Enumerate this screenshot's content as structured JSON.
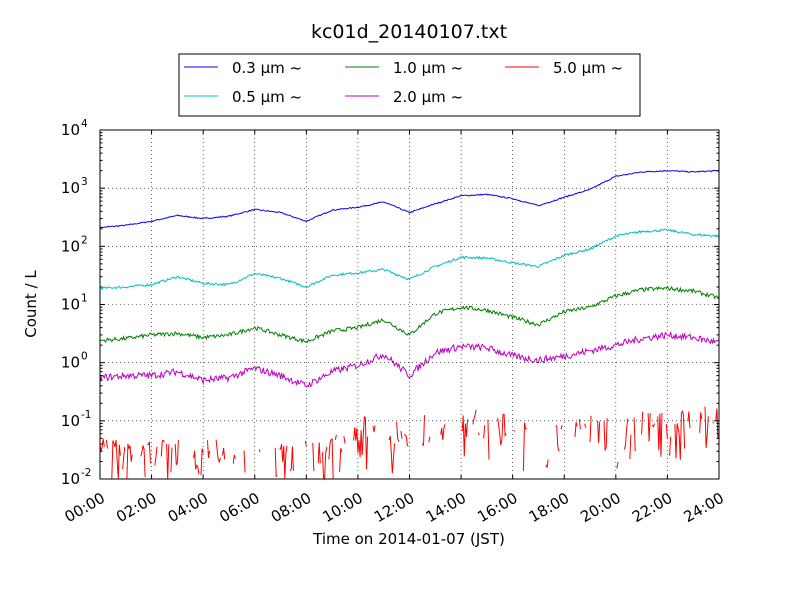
{
  "chart_data": {
    "type": "line",
    "title": "kc01d_20140107.txt",
    "xlabel": "Time on 2014-01-07 (JST)",
    "ylabel": "Count / L",
    "yscale": "log",
    "ylim": [
      0.01,
      10000
    ],
    "xlim": [
      0,
      24
    ],
    "x_tick_labels": [
      "00:00",
      "02:00",
      "04:00",
      "06:00",
      "08:00",
      "10:00",
      "12:00",
      "14:00",
      "16:00",
      "18:00",
      "20:00",
      "22:00",
      "24:00"
    ],
    "y_tick_labels": [
      {
        "base": "10",
        "exp": "-2"
      },
      {
        "base": "10",
        "exp": "-1"
      },
      {
        "base": "10",
        "exp": "0"
      },
      {
        "base": "10",
        "exp": "1"
      },
      {
        "base": "10",
        "exp": "2"
      },
      {
        "base": "10",
        "exp": "3"
      },
      {
        "base": "10",
        "exp": "4"
      }
    ],
    "grid": true,
    "legend_position": "top-center",
    "x_hours": [
      0,
      1,
      2,
      3,
      4,
      5,
      6,
      7,
      8,
      9,
      10,
      11,
      12,
      13,
      14,
      15,
      16,
      17,
      18,
      19,
      20,
      21,
      22,
      23,
      24
    ],
    "series": [
      {
        "name": "0.3 μm ~",
        "color": "#0000ff",
        "values": [
          210,
          230,
          270,
          340,
          300,
          330,
          430,
          380,
          270,
          420,
          470,
          580,
          380,
          540,
          740,
          780,
          660,
          500,
          700,
          950,
          1600,
          1900,
          2000,
          1900,
          2000
        ]
      },
      {
        "name": "0.5 μm ~",
        "color": "#00bfbf",
        "values": [
          19,
          20,
          22,
          30,
          23,
          22,
          34,
          28,
          20,
          32,
          35,
          40,
          27,
          45,
          65,
          63,
          52,
          45,
          70,
          90,
          150,
          180,
          190,
          160,
          150
        ]
      },
      {
        "name": "1.0 μm ~",
        "color": "#008000",
        "values": [
          2.4,
          2.6,
          3.0,
          3.2,
          2.7,
          3.0,
          4.0,
          3.0,
          2.3,
          3.5,
          4.0,
          5.5,
          3.0,
          7.0,
          9.0,
          8.0,
          6.0,
          4.5,
          7.5,
          9.0,
          14,
          18,
          19,
          17,
          13
        ]
      },
      {
        "name": "2.0 μm ~",
        "color": "#bf00bf",
        "values": [
          0.55,
          0.6,
          0.6,
          0.7,
          0.5,
          0.55,
          0.8,
          0.6,
          0.4,
          0.7,
          0.9,
          1.4,
          0.6,
          1.5,
          1.9,
          1.8,
          1.3,
          1.1,
          1.3,
          1.6,
          2.0,
          2.6,
          3.0,
          2.7,
          2.2
        ]
      },
      {
        "name": "5.0 μm ~",
        "color": "#ff0000",
        "values": [
          0.02,
          0.02,
          0.02,
          0.02,
          0.02,
          0.02,
          0.02,
          0.02,
          0.02,
          0.02,
          0.05,
          0.04,
          0.04,
          0.06,
          0.07,
          0.06,
          0.05,
          0.03,
          0.04,
          0.05,
          0.05,
          0.06,
          0.06,
          0.07,
          0.08
        ]
      }
    ]
  }
}
